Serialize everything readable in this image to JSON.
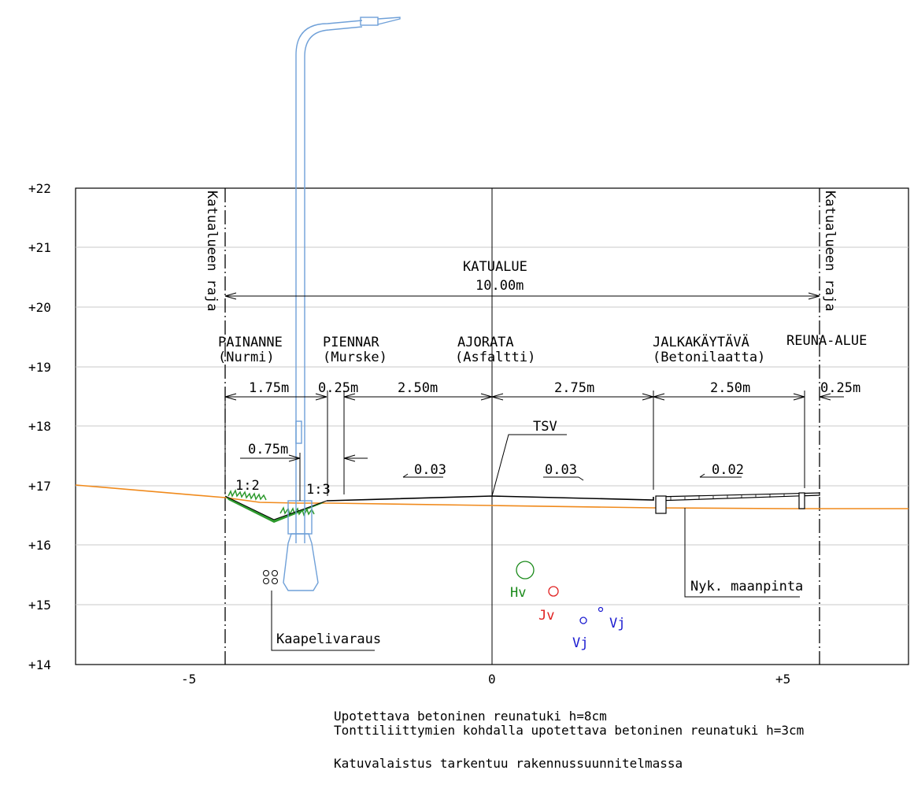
{
  "axes": {
    "y_ticks": [
      "+22",
      "+21",
      "+20",
      "+19",
      "+18",
      "+17",
      "+16",
      "+15",
      "+14"
    ],
    "x_ticks": [
      "-5",
      "0",
      "+5"
    ]
  },
  "boundary_labels": {
    "left": "Katualueen raja",
    "right": "Katualueen raja"
  },
  "street_area": {
    "title": "KATUALUE",
    "width": "10.00m"
  },
  "zones": [
    {
      "name": "PAINANNE",
      "material": "(Nurmi)"
    },
    {
      "name": "PIENNAR",
      "material": "(Murske)"
    },
    {
      "name": "AJORATA",
      "material": "(Asfaltti)"
    },
    {
      "name": "JALKAKÄYTÄVÄ",
      "material": "(Betonilaatta)"
    },
    {
      "name": "REUNA-ALUE",
      "material": ""
    }
  ],
  "dimensions": [
    "1.75m",
    "0.25m",
    "2.50m",
    "2.75m",
    "2.50m",
    "0.25m",
    "0.75m"
  ],
  "slopes": {
    "ditch_left": "1:2",
    "ditch_right": "1:3",
    "road_left": "0.03",
    "road_right": "0.03",
    "sidewalk": "0.02"
  },
  "labels": {
    "tsv": "TSV",
    "ground": "Nyk. maanpinta",
    "cable": "Kaapelivaraus",
    "hv": "Hv",
    "jv": "Jv",
    "vj1": "Vj",
    "vj2": "Vj"
  },
  "colors": {
    "ground_line": "#f08a1c",
    "lamp_post": "#6fa0d8",
    "grass": "#2e9a2e",
    "hv": "#1a8a1a",
    "jv": "#e02020",
    "vj": "#1a1ad0"
  },
  "notes": [
    "Upotettava betoninen reunatuki h=8cm",
    "Tonttiliittymien kohdalla upotettava betoninen reunatuki h=3cm",
    "Katuvalaistus tarkentuu rakennussuunnitelmassa"
  ]
}
